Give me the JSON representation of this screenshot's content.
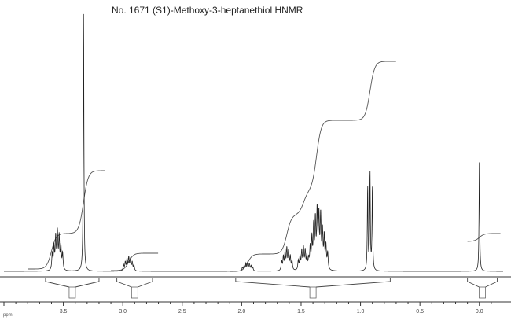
{
  "title": "No. 1671 (S1)-Methoxy-3-heptanethiol HNMR",
  "chart_data": {
    "type": "line",
    "title": "No. 1671 (S1)-Methoxy-3-heptanethiol HNMR",
    "xlabel": "ppm",
    "ylabel": "",
    "x_reversed": true,
    "xlim": [
      4.0,
      -0.2
    ],
    "tick_labels": [
      "3.5",
      "3.0",
      "2.5",
      "2.0",
      "1.5",
      "1.0",
      "0.5",
      "0.0"
    ],
    "peaks": [
      {
        "ppm": 3.55,
        "height": 0.14,
        "pattern": "multiplet"
      },
      {
        "ppm": 3.33,
        "height": 1.0,
        "pattern": "singlet"
      },
      {
        "ppm": 2.95,
        "height": 0.05,
        "pattern": "multiplet"
      },
      {
        "ppm": 1.95,
        "height": 0.03,
        "pattern": "multiplet"
      },
      {
        "ppm": 1.62,
        "height": 0.08,
        "pattern": "multiplet"
      },
      {
        "ppm": 1.48,
        "height": 0.08,
        "pattern": "multiplet"
      },
      {
        "ppm": 1.38,
        "height": 0.18,
        "pattern": "multiplet"
      },
      {
        "ppm": 1.32,
        "height": 0.14,
        "pattern": "multiplet"
      },
      {
        "ppm": 0.92,
        "height": 0.38,
        "pattern": "triplet"
      },
      {
        "ppm": 0.0,
        "height": 0.42,
        "pattern": "singlet"
      }
    ],
    "integral_regions": [
      {
        "from": 3.65,
        "to": 3.2
      },
      {
        "from": 3.05,
        "to": 2.75
      },
      {
        "from": 2.05,
        "to": 0.75
      },
      {
        "from": 0.1,
        "to": -0.15
      }
    ],
    "grid": false
  }
}
